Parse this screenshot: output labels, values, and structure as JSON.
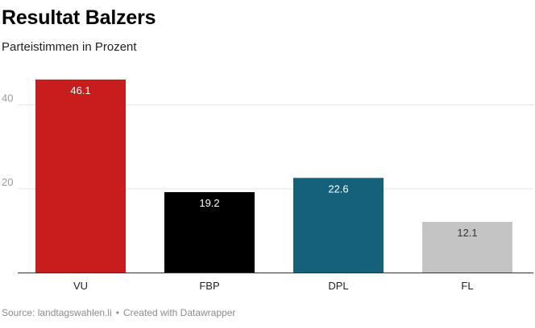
{
  "title": "Resultat Balzers",
  "subtitle": "Parteistimmen in Prozent",
  "footer": {
    "source": "Source: landtagswahlen.li",
    "separator": "•",
    "credit": "Created with Datawrapper"
  },
  "chart_data": {
    "type": "bar",
    "title": "Resultat Balzers",
    "subtitle": "Parteistimmen in Prozent",
    "categories": [
      "VU",
      "FBP",
      "DPL",
      "FL"
    ],
    "values": [
      46.1,
      19.2,
      22.6,
      12.1
    ],
    "colors": [
      "#c71e1d",
      "#000000",
      "#15607a",
      "#c4c4c4"
    ],
    "label_colors": [
      "#ffffff",
      "#ffffff",
      "#ffffff",
      "#333333"
    ],
    "yticks": [
      20,
      40
    ],
    "ylim": [
      0,
      50
    ],
    "grid": true,
    "xlabel": "",
    "ylabel": ""
  }
}
